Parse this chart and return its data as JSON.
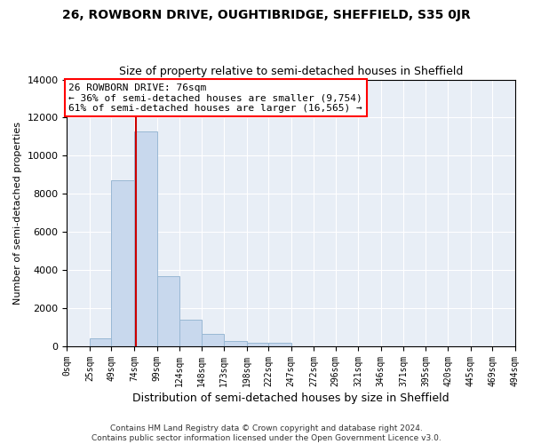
{
  "title": "26, ROWBORN DRIVE, OUGHTIBRIDGE, SHEFFIELD, S35 0JR",
  "subtitle": "Size of property relative to semi-detached houses in Sheffield",
  "xlabel": "Distribution of semi-detached houses by size in Sheffield",
  "ylabel": "Number of semi-detached properties",
  "bar_edges": [
    0,
    25,
    49,
    74,
    99,
    124,
    148,
    173,
    198,
    222,
    247,
    272,
    296,
    321,
    346,
    371,
    395,
    420,
    445,
    469,
    494
  ],
  "bar_heights": [
    0,
    400,
    8700,
    11300,
    3700,
    1400,
    650,
    300,
    200,
    200,
    0,
    0,
    0,
    0,
    0,
    0,
    0,
    0,
    0,
    0
  ],
  "bar_color": "#c8d8ed",
  "bar_edge_color": "#99b8d4",
  "bg_color": "#e8eef6",
  "grid_color": "#ffffff",
  "property_sqm": 76,
  "red_line_color": "#cc0000",
  "annotation_line1": "26 ROWBORN DRIVE: 76sqm",
  "annotation_line2": "← 36% of semi-detached houses are smaller (9,754)",
  "annotation_line3": "61% of semi-detached houses are larger (16,565) →",
  "footer_text": "Contains HM Land Registry data © Crown copyright and database right 2024.\nContains public sector information licensed under the Open Government Licence v3.0.",
  "ylim": [
    0,
    14000
  ],
  "tick_labels": [
    "0sqm",
    "25sqm",
    "49sqm",
    "74sqm",
    "99sqm",
    "124sqm",
    "148sqm",
    "173sqm",
    "198sqm",
    "222sqm",
    "247sqm",
    "272sqm",
    "296sqm",
    "321sqm",
    "346sqm",
    "371sqm",
    "395sqm",
    "420sqm",
    "445sqm",
    "469sqm",
    "494sqm"
  ]
}
